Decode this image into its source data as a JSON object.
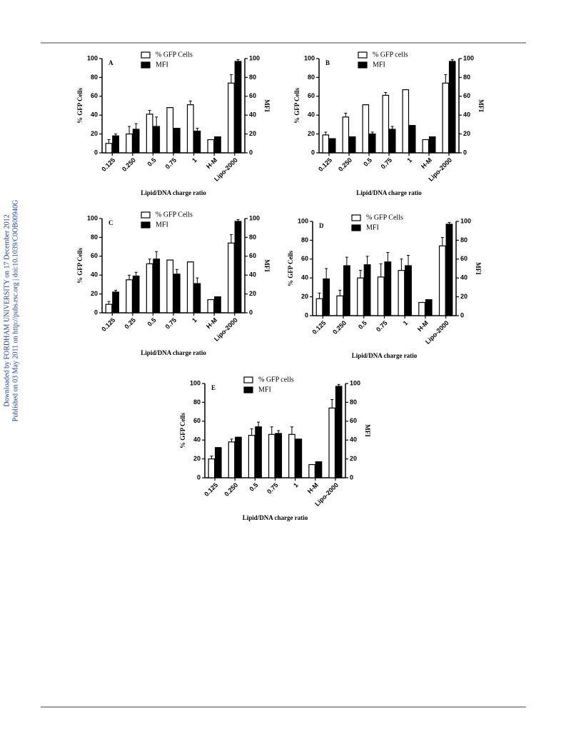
{
  "margin_text": [
    "Downloaded by FORDHAM UNIVERSITY on 17 December 2012",
    "Published on 03 May 2011 on http://pubs.rsc.org | doi:10.1039/C0OB00940G"
  ],
  "chart_data": [
    {
      "type": "bar",
      "panel": "A",
      "xlabel": "Lipid/DNA charge ratio",
      "ylabel": "% GFP Cells",
      "y2label": "MFI",
      "categories": [
        "0.125",
        "0.250",
        "0.5",
        "0.75",
        "1",
        "H-M",
        "Lipo-2000"
      ],
      "series": [
        {
          "name": "% GFP Cells",
          "color": "#ffffff",
          "values": [
            10,
            20,
            41,
            48,
            51,
            14,
            74
          ],
          "errors": [
            4,
            8,
            4,
            0,
            4,
            0,
            9
          ]
        },
        {
          "name": "MFI",
          "color": "#000000",
          "axis": "y2",
          "values": [
            18,
            25,
            28,
            26,
            23,
            17,
            97
          ],
          "errors": [
            2,
            6,
            10,
            0,
            3,
            0,
            2
          ]
        }
      ],
      "ylim": [
        0,
        100
      ],
      "yticks": [
        0,
        20,
        40,
        60,
        80,
        100
      ],
      "y2lim": [
        0,
        100
      ],
      "y2ticks": [
        0,
        20,
        40,
        60,
        80,
        100
      ]
    },
    {
      "type": "bar",
      "panel": "B",
      "xlabel": "Lipid/DNA charge ratio",
      "ylabel": "% GFP Cells",
      "y2label": "MFI",
      "categories": [
        "0.125",
        "0.250",
        "0.5",
        "0.75",
        "1",
        "H-M",
        "Lipo-2000"
      ],
      "series": [
        {
          "name": "% GFP cells",
          "color": "#ffffff",
          "values": [
            19,
            38,
            51,
            61,
            67,
            14,
            74
          ],
          "errors": [
            3,
            4,
            0,
            3,
            0,
            0,
            9
          ]
        },
        {
          "name": "MFI",
          "color": "#000000",
          "axis": "y2",
          "values": [
            15,
            17,
            20,
            25,
            29,
            17,
            97
          ],
          "errors": [
            0,
            0,
            2,
            3,
            0,
            0,
            2
          ]
        }
      ],
      "ylim": [
        0,
        100
      ],
      "yticks": [
        0,
        20,
        40,
        60,
        80,
        100
      ],
      "y2lim": [
        0,
        100
      ],
      "y2ticks": [
        0,
        20,
        40,
        60,
        80,
        100
      ]
    },
    {
      "type": "bar",
      "panel": "C",
      "xlabel": "Lipid/DNA charge ratio",
      "ylabel": "% GFP Cells",
      "y2label": "MFI",
      "categories": [
        "0.125",
        "0.25",
        "0.5",
        "0.75",
        "1",
        "H-M",
        "Lipo-2000"
      ],
      "series": [
        {
          "name": "% GFP Cells",
          "color": "#ffffff",
          "values": [
            9,
            35,
            52,
            56,
            54,
            14,
            74
          ],
          "errors": [
            3,
            5,
            5,
            0,
            0,
            0,
            9
          ]
        },
        {
          "name": "MFI",
          "color": "#000000",
          "axis": "y2",
          "values": [
            22,
            39,
            57,
            41,
            31,
            17,
            97
          ],
          "errors": [
            2,
            4,
            8,
            5,
            6,
            0,
            2
          ]
        }
      ],
      "ylim": [
        0,
        100
      ],
      "yticks": [
        0,
        20,
        40,
        60,
        80,
        100
      ],
      "y2lim": [
        0,
        100
      ],
      "y2ticks": [
        0,
        20,
        40,
        60,
        80,
        100
      ]
    },
    {
      "type": "bar",
      "panel": "D",
      "xlabel": "Lipid/DNA charge ratio",
      "ylabel": "% GFP Cells",
      "y2label": "MFI",
      "categories": [
        "0.125",
        "0.250",
        "0.5",
        "0.75",
        "1",
        "H-M",
        "Lipo-2000"
      ],
      "series": [
        {
          "name": "% GFP Cells",
          "color": "#ffffff",
          "values": [
            18,
            21,
            40,
            41,
            48,
            14,
            74
          ],
          "errors": [
            6,
            6,
            8,
            14,
            12,
            0,
            9
          ]
        },
        {
          "name": "MFI",
          "color": "#000000",
          "axis": "y2",
          "values": [
            39,
            53,
            54,
            57,
            53,
            17,
            97
          ],
          "errors": [
            11,
            9,
            9,
            10,
            11,
            0,
            2
          ]
        }
      ],
      "ylim": [
        0,
        100
      ],
      "yticks": [
        0,
        20,
        40,
        60,
        80,
        100
      ],
      "y2lim": [
        0,
        100
      ],
      "y2ticks": [
        0,
        20,
        40,
        60,
        80,
        100
      ]
    },
    {
      "type": "bar",
      "panel": "E",
      "xlabel": "Lipid/DNA charge ratio",
      "ylabel": "% GFP Cells",
      "y2label": "MFI",
      "categories": [
        "0.125",
        "0.250",
        "0.5",
        "0.75",
        "1",
        "H-M",
        "Lipo-2000"
      ],
      "series": [
        {
          "name": "% GFP cells",
          "color": "#ffffff",
          "values": [
            20,
            38,
            45,
            46,
            46,
            14,
            74
          ],
          "errors": [
            3,
            3,
            7,
            8,
            8,
            0,
            9
          ]
        },
        {
          "name": "MFI",
          "color": "#000000",
          "axis": "y2",
          "values": [
            32,
            43,
            54,
            47,
            41,
            17,
            97
          ],
          "errors": [
            0,
            0,
            5,
            3,
            0,
            0,
            2
          ]
        }
      ],
      "ylim": [
        0,
        100
      ],
      "yticks": [
        0,
        20,
        40,
        60,
        80,
        100
      ],
      "y2lim": [
        0,
        100
      ],
      "y2ticks": [
        0,
        20,
        40,
        60,
        80,
        100
      ]
    }
  ]
}
